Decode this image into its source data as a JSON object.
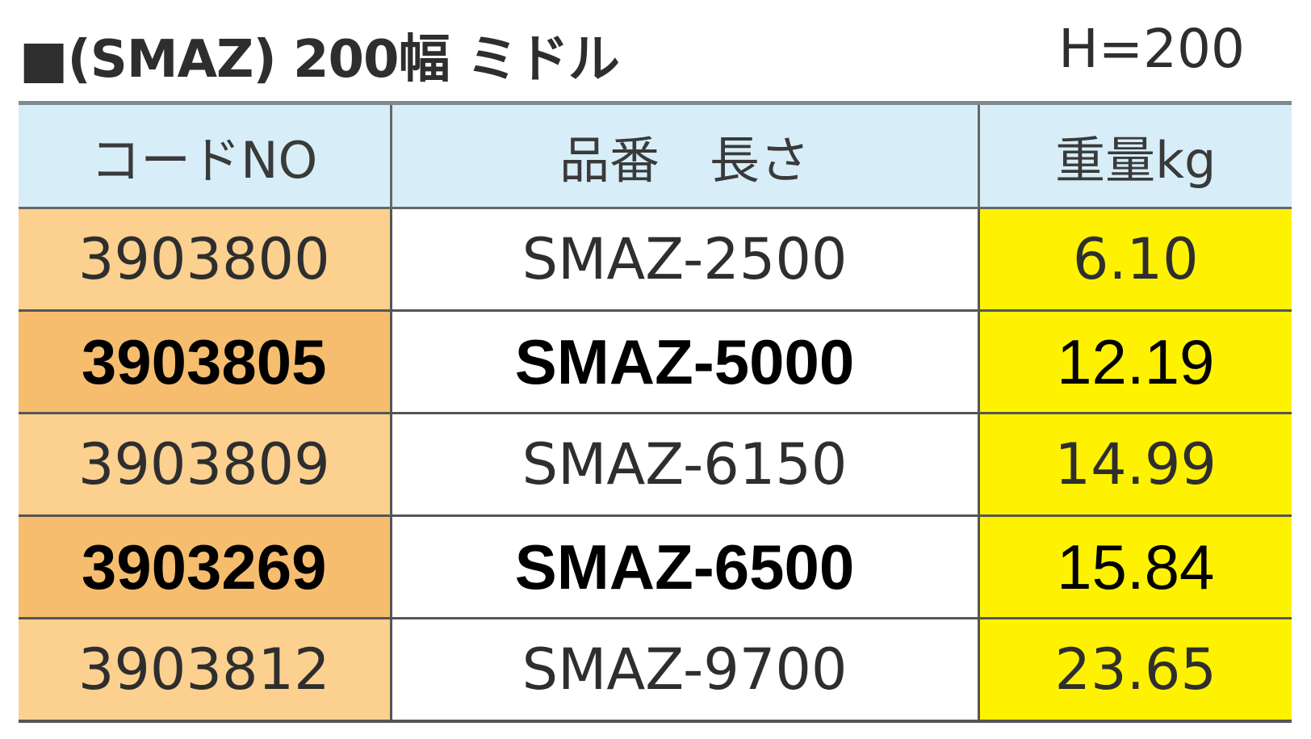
{
  "header": {
    "title": "■(SMAZ) 200幅 ミドル",
    "height": "H=200"
  },
  "table": {
    "columns": [
      "コードNO",
      "品番　長さ",
      "重量kg"
    ],
    "rows": [
      [
        "3903800",
        "SMAZ-2500",
        "6.10"
      ],
      [
        "3903805",
        "SMAZ-5000",
        "12.19"
      ],
      [
        "3903809",
        "SMAZ-6150",
        "14.99"
      ],
      [
        "3903269",
        "SMAZ-6500",
        "15.84"
      ],
      [
        "3903812",
        "SMAZ-9700",
        "23.65"
      ]
    ]
  }
}
